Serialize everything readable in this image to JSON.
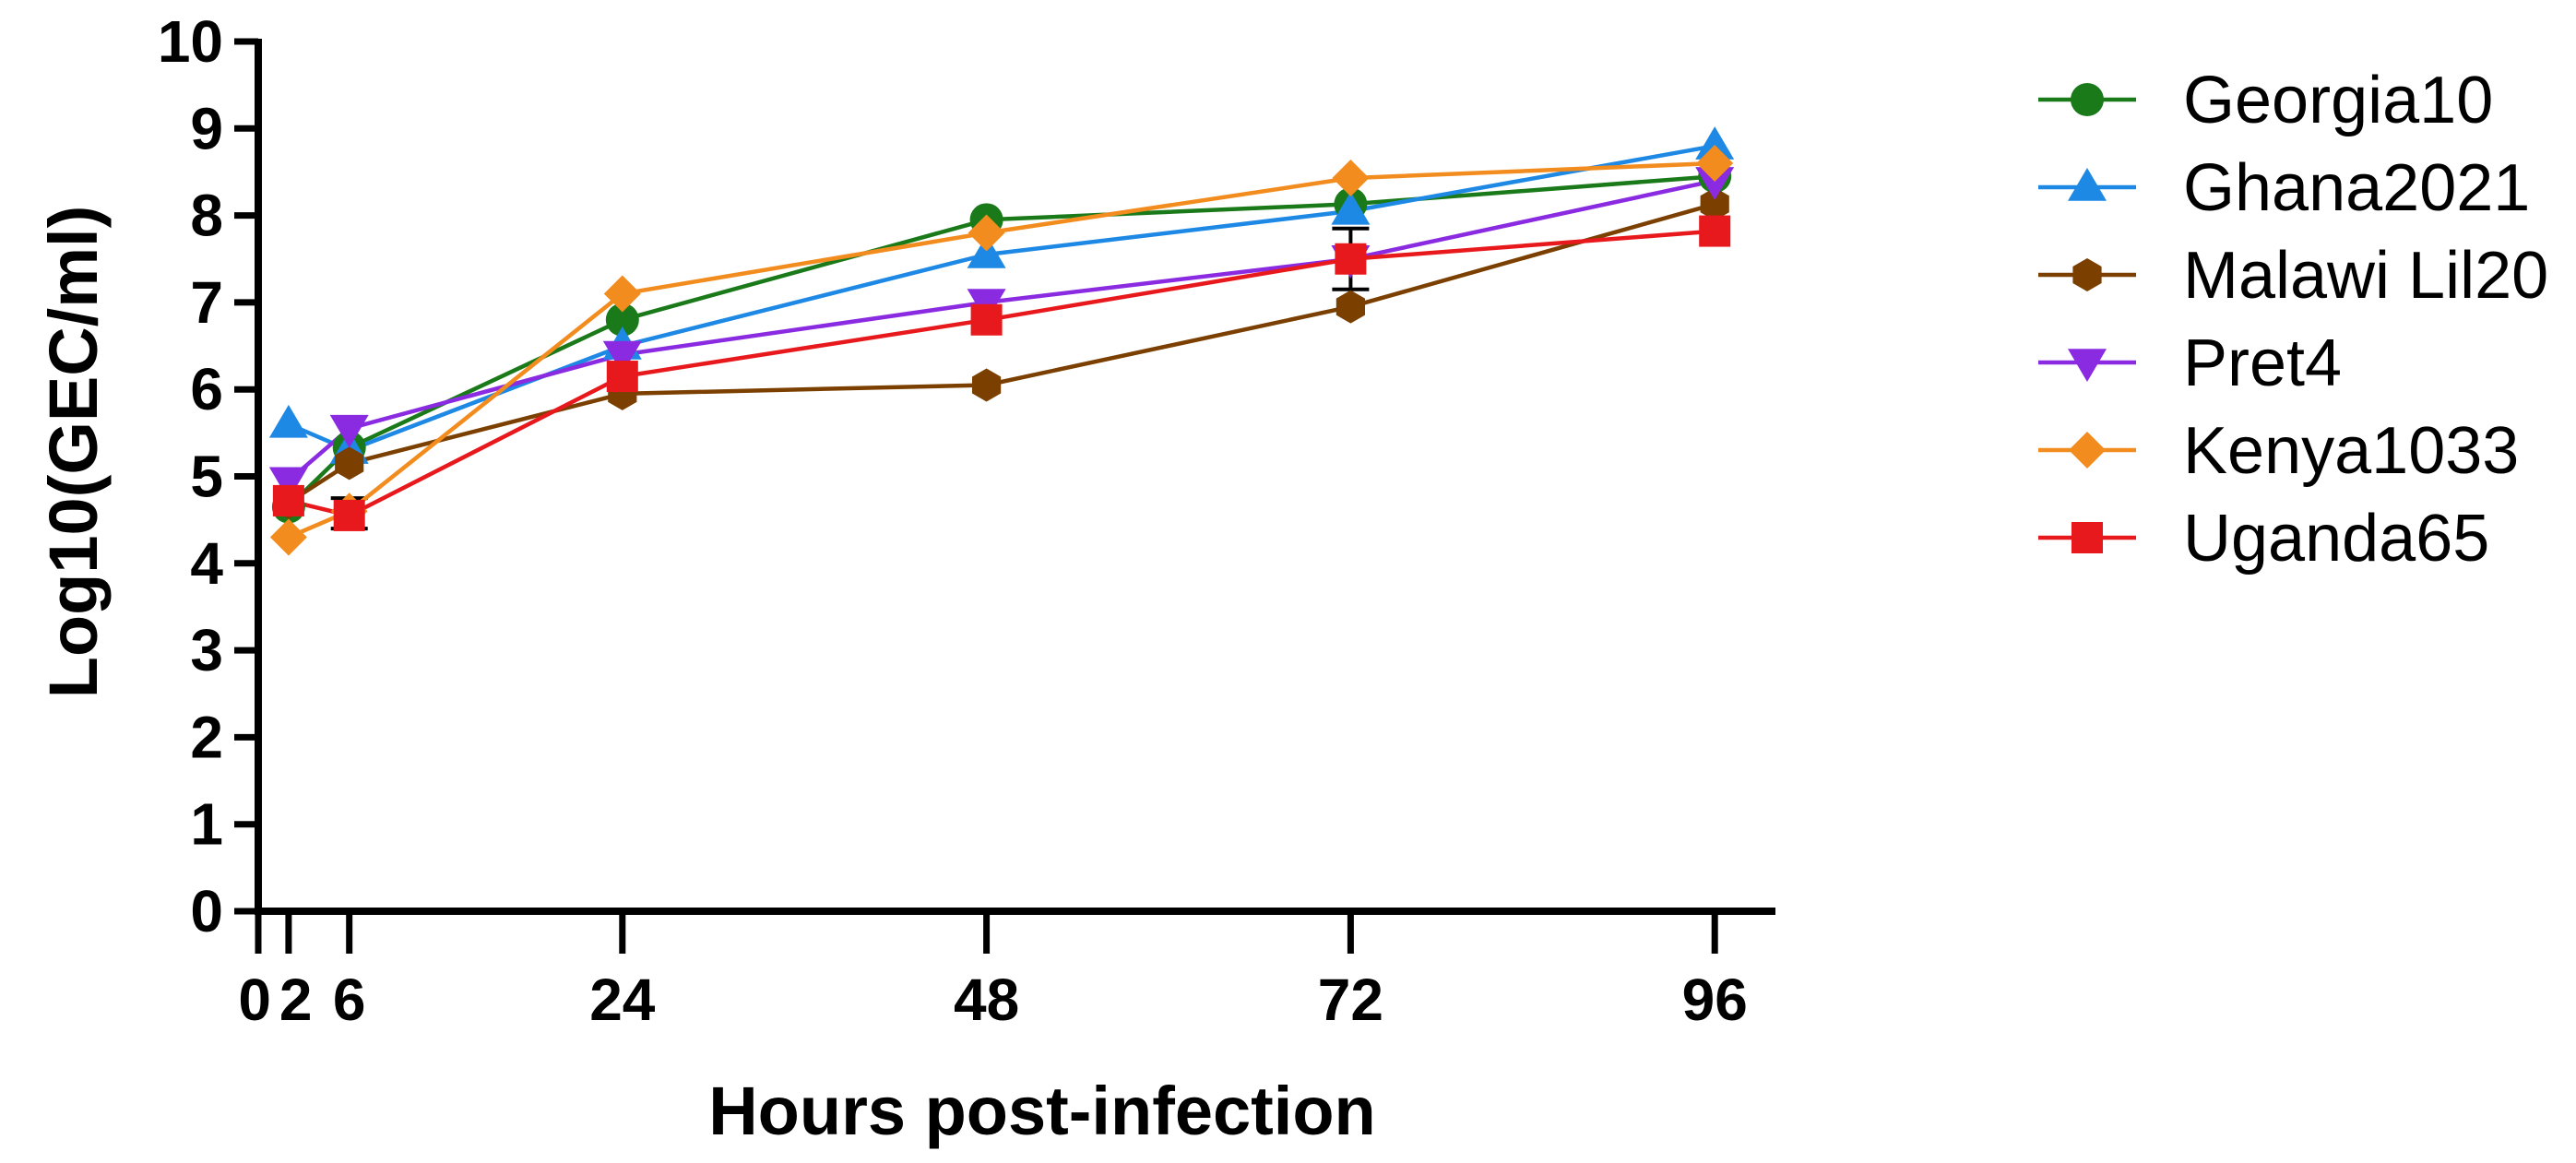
{
  "chart_data": {
    "type": "line",
    "title": "",
    "xlabel": "Hours post-infection",
    "ylabel": "Log10(GEC/ml)",
    "x": [
      2,
      6,
      24,
      48,
      72,
      96
    ],
    "x_ticks": [
      0,
      2,
      6,
      24,
      48,
      72,
      96
    ],
    "x_tick_labels": [
      "0",
      "2",
      "6",
      "24",
      "48",
      "72",
      "96"
    ],
    "xlim": [
      0,
      100
    ],
    "y_ticks": [
      0,
      1,
      2,
      3,
      4,
      5,
      6,
      7,
      8,
      9,
      10
    ],
    "y_tick_labels": [
      "0",
      "1",
      "2",
      "3",
      "4",
      "5",
      "6",
      "7",
      "8",
      "9",
      "10"
    ],
    "ylim": [
      0,
      10
    ],
    "grid": false,
    "legend_position": "right",
    "series": [
      {
        "name": "Georgia10",
        "color": "#1a7a1a",
        "marker": "circle",
        "values": [
          4.65,
          5.33,
          6.8,
          7.95,
          8.13,
          8.45
        ]
      },
      {
        "name": "Ghana2021",
        "color": "#1e88e5",
        "marker": "triangle-up",
        "values": [
          5.6,
          5.3,
          6.5,
          7.55,
          8.05,
          8.8
        ]
      },
      {
        "name": "Malawi Lil20",
        "color": "#7b3f00",
        "marker": "hexagon",
        "values": [
          4.7,
          5.15,
          5.95,
          6.05,
          6.95,
          8.13
        ]
      },
      {
        "name": "Pret4",
        "color": "#8a2be2",
        "marker": "triangle-down",
        "values": [
          4.95,
          5.55,
          6.4,
          7.0,
          7.5,
          8.4
        ]
      },
      {
        "name": "Kenya1033",
        "color": "#f28c1e",
        "marker": "diamond",
        "values": [
          4.3,
          4.6,
          7.1,
          7.8,
          8.43,
          8.6
        ]
      },
      {
        "name": "Uganda65",
        "color": "#e8191c",
        "marker": "square",
        "values": [
          4.72,
          4.55,
          6.15,
          6.8,
          7.5,
          7.82
        ]
      }
    ],
    "error_bars": [
      {
        "x": 6,
        "low": 4.4,
        "high": 4.75
      },
      {
        "x": 72,
        "low": 7.15,
        "high": 7.85
      }
    ]
  }
}
